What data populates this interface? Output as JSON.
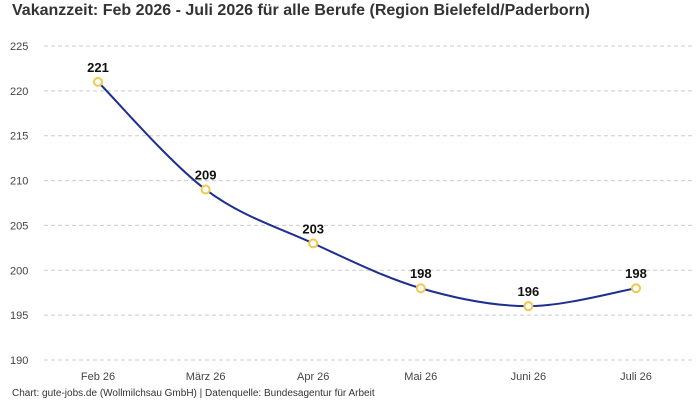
{
  "chart_data": {
    "type": "line",
    "title": "Vakanzzeit: Feb 2026 - Juli 2026 für alle Berufe (Region Bielefeld/Paderborn)",
    "categories": [
      "Feb 26",
      "März 26",
      "Apr 26",
      "Mai 26",
      "Juni 26",
      "Juli 26"
    ],
    "series": [
      {
        "values": [
          221,
          209,
          203,
          198,
          196,
          198
        ]
      }
    ],
    "yticks": [
      190,
      195,
      200,
      205,
      210,
      215,
      220,
      225
    ],
    "ylim": [
      190,
      225
    ],
    "xlabel": "",
    "ylabel": "",
    "grid": true,
    "grid_style": "dashed-horizontal",
    "data_labels": true,
    "colors": {
      "line": "#1f2f8f",
      "marker_stroke": "#f2c94c",
      "marker_fill": "#ffffff",
      "grid": "#cccccc"
    }
  },
  "footer": {
    "text": "Chart: gute-jobs.de (Wollmilchsau GmbH) | Datenquelle: Bundesagentur für Arbeit"
  }
}
